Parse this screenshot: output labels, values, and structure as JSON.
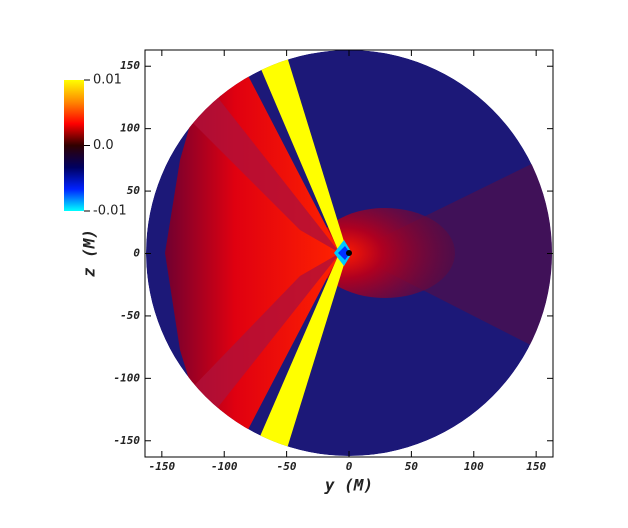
{
  "chart_data": {
    "type": "contour",
    "xlabel": "y (M)",
    "ylabel": "z (M)",
    "xlim": [
      -163.5,
      163.5
    ],
    "ylim": [
      -163,
      163
    ],
    "xticks": [
      -150,
      -100,
      -50,
      0,
      50,
      100,
      150
    ],
    "yticks": [
      -150,
      -100,
      -50,
      0,
      50,
      100,
      150
    ],
    "colorbar": {
      "clim": [
        -0.01,
        0.01
      ],
      "ticks": [
        0.01,
        {
          "value": 0,
          "label": "0.0"
        },
        -0.01
      ],
      "colormap": [
        "#00ffff",
        "#0022ff",
        "#000060",
        "#300000",
        "#ff0000",
        "#ff8800",
        "#ffff00"
      ]
    }
  }
}
